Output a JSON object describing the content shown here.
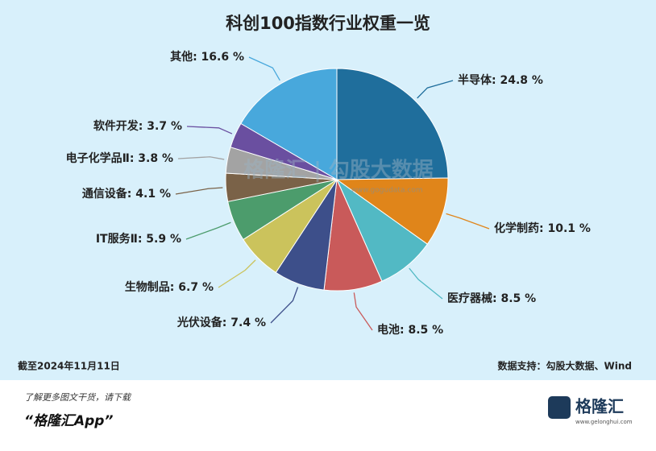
{
  "chart_data": {
    "type": "pie",
    "title": "科创100指数行业权重一览",
    "categories": [
      "半导体",
      "化学制药",
      "医疗器械",
      "电池",
      "光伏设备",
      "生物制品",
      "IT服务Ⅱ",
      "通信设备",
      "电子化学品Ⅱ",
      "软件开发",
      "其他"
    ],
    "values": [
      24.8,
      10.1,
      8.5,
      8.5,
      7.4,
      6.7,
      5.9,
      4.1,
      3.8,
      3.7,
      16.6
    ],
    "value_labels": [
      "半导体: 24.8 %",
      "化学制药: 10.1 %",
      "医疗器械: 8.5 %",
      "电池: 8.5 %",
      "光伏设备: 7.4 %",
      "生物制品: 6.7 %",
      "IT服务Ⅱ: 5.9 %",
      "通信设备: 4.1 %",
      "电子化学品Ⅱ: 3.8 %",
      "软件开发: 3.7 %",
      "其他: 16.6 %"
    ],
    "colors": [
      "#1f6e9c",
      "#e0851a",
      "#52b9c4",
      "#c95a5a",
      "#3d4f8a",
      "#cbc35c",
      "#4c9c6c",
      "#7a6248",
      "#a3a3a3",
      "#6a4fa0",
      "#48a8dc"
    ]
  },
  "watermark": "格隆汇 | 勾股大数据",
  "watermark_url": "www.gogudata.com",
  "date_note": "截至2024年11月11日",
  "source": "数据支持：勾股大数据、Wind",
  "promo": "了解更多图文干货，请下载",
  "app_name": "“格隆汇App”",
  "logo": "格隆汇",
  "logo_url": "www.gelonghui.com"
}
